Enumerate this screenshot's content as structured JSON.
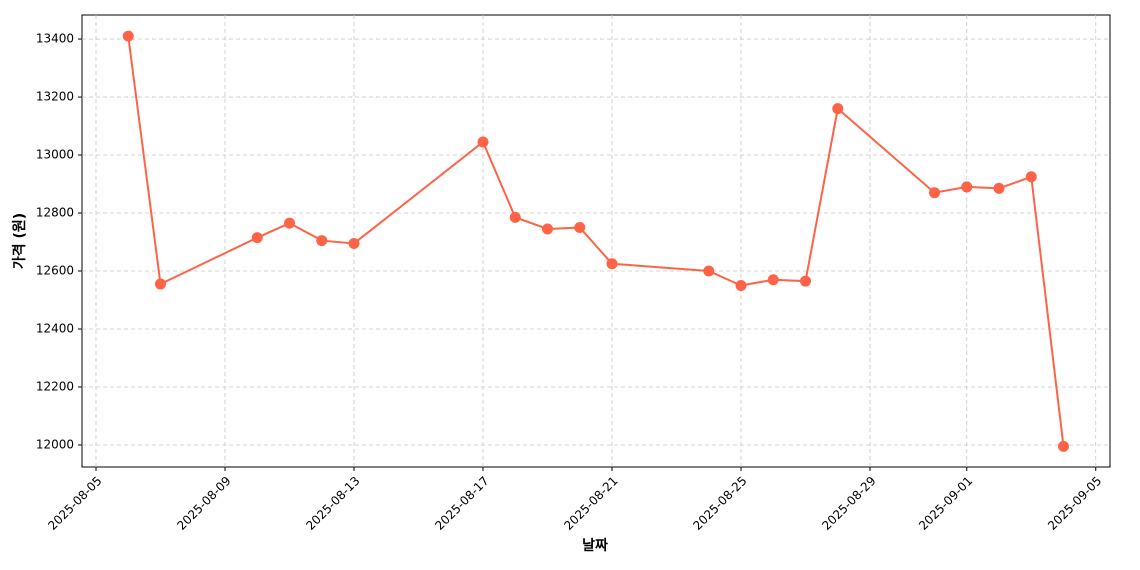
{
  "chart_data": {
    "type": "line",
    "x_label": "날짜",
    "y_label": "가격 (원)",
    "x": [
      "2025-08-06",
      "2025-08-07",
      "2025-08-10",
      "2025-08-11",
      "2025-08-12",
      "2025-08-13",
      "2025-08-17",
      "2025-08-18",
      "2025-08-19",
      "2025-08-20",
      "2025-08-21",
      "2025-08-24",
      "2025-08-25",
      "2025-08-26",
      "2025-08-27",
      "2025-08-28",
      "2025-08-31",
      "2025-09-01",
      "2025-09-02",
      "2025-09-03",
      "2025-09-04"
    ],
    "values": [
      13410,
      12555,
      12715,
      12765,
      12705,
      12695,
      13045,
      12785,
      12745,
      12750,
      12625,
      12600,
      12550,
      12570,
      12565,
      13160,
      12870,
      12890,
      12885,
      12925,
      11995
    ],
    "color": "#ff6347",
    "xlim": [
      "2025-08-04",
      "2025-09-05"
    ],
    "xticks": [
      "2025-08-05",
      "2025-08-09",
      "2025-08-13",
      "2025-08-17",
      "2025-08-21",
      "2025-08-25",
      "2025-08-29",
      "2025-09-01",
      "2025-09-05"
    ],
    "ylim": [
      11924,
      13483
    ],
    "yticks": [
      12000,
      12200,
      12400,
      12600,
      12800,
      13000,
      13200,
      13400
    ],
    "grid": true
  }
}
